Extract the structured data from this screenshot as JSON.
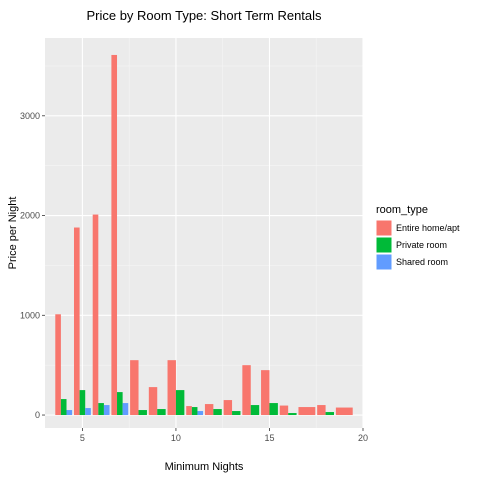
{
  "chart_data": {
    "type": "bar",
    "title": "Price by Room Type: Short Term Rentals",
    "xlabel": "Minimum Nights",
    "ylabel": "Price per Night",
    "xlim": [
      3.0,
      20.0
    ],
    "ylim": [
      -130,
      3780
    ],
    "x_ticks": [
      5,
      10,
      15,
      20
    ],
    "y_ticks": [
      0,
      1000,
      2000,
      3000
    ],
    "grid": true,
    "legend": {
      "title": "room_type",
      "placement": "right"
    },
    "bar_group_width": 0.9,
    "series": [
      {
        "name": "Entire home/apt",
        "color": "#F8766D",
        "points": [
          {
            "x": 4,
            "y": 1010
          },
          {
            "x": 5,
            "y": 1880
          },
          {
            "x": 6,
            "y": 2010
          },
          {
            "x": 7,
            "y": 3610
          },
          {
            "x": 8,
            "y": 550
          },
          {
            "x": 9,
            "y": 280
          },
          {
            "x": 10,
            "y": 550
          },
          {
            "x": 11,
            "y": 90
          },
          {
            "x": 12,
            "y": 110
          },
          {
            "x": 13,
            "y": 150
          },
          {
            "x": 14,
            "y": 500
          },
          {
            "x": 15,
            "y": 450
          },
          {
            "x": 16,
            "y": 95
          },
          {
            "x": 17,
            "y": 80
          },
          {
            "x": 18,
            "y": 100
          },
          {
            "x": 19,
            "y": 75
          }
        ]
      },
      {
        "name": "Private room",
        "color": "#00BA38",
        "points": [
          {
            "x": 4,
            "y": 160
          },
          {
            "x": 5,
            "y": 250
          },
          {
            "x": 6,
            "y": 120
          },
          {
            "x": 7,
            "y": 230
          },
          {
            "x": 8,
            "y": 50
          },
          {
            "x": 9,
            "y": 60
          },
          {
            "x": 10,
            "y": 250
          },
          {
            "x": 11,
            "y": 80
          },
          {
            "x": 12,
            "y": 60
          },
          {
            "x": 13,
            "y": 40
          },
          {
            "x": 14,
            "y": 100
          },
          {
            "x": 15,
            "y": 120
          },
          {
            "x": 16,
            "y": 20
          },
          {
            "x": 18,
            "y": 30
          }
        ]
      },
      {
        "name": "Shared room",
        "color": "#619CFF",
        "points": [
          {
            "x": 4,
            "y": 50
          },
          {
            "x": 5,
            "y": 70
          },
          {
            "x": 6,
            "y": 100
          },
          {
            "x": 7,
            "y": 120
          },
          {
            "x": 11,
            "y": 40
          }
        ]
      }
    ]
  }
}
